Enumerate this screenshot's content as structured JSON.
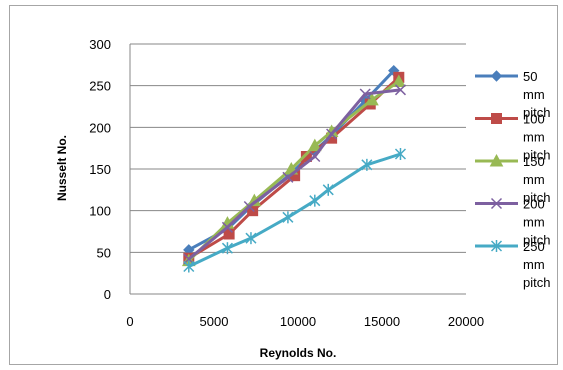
{
  "chart_data": {
    "type": "line",
    "title": "",
    "xlabel": "Reynolds No.",
    "ylabel": "Nusselt No.",
    "xlim": [
      0,
      20000
    ],
    "ylim": [
      0,
      300
    ],
    "x_ticks": [
      0,
      5000,
      10000,
      15000,
      20000
    ],
    "y_ticks": [
      0,
      50,
      100,
      150,
      200,
      250,
      300
    ],
    "x_tick_labels": [
      "0",
      "5000",
      "10000",
      "15000",
      "20000"
    ],
    "y_tick_labels": [
      "0",
      "50",
      "100",
      "150",
      "200",
      "250",
      "300"
    ],
    "grid": "horizontal",
    "legend": "right",
    "series": [
      {
        "name": "50 mm pitch",
        "name_lines": [
          "50",
          "mm",
          "pitch"
        ],
        "color": "#4a7ebb",
        "marker": "diamond",
        "points": [
          [
            3500,
            53
          ],
          [
            5800,
            78
          ],
          [
            7200,
            105
          ],
          [
            9500,
            143
          ],
          [
            11000,
            172
          ],
          [
            12000,
            190
          ],
          [
            14000,
            232
          ],
          [
            15700,
            268
          ]
        ]
      },
      {
        "name": "100 mm pitch",
        "name_lines": [
          "100",
          "mm",
          "pitch"
        ],
        "color": "#be4b48",
        "marker": "square",
        "points": [
          [
            3500,
            43
          ],
          [
            5900,
            72
          ],
          [
            7300,
            100
          ],
          [
            9800,
            142
          ],
          [
            10500,
            165
          ],
          [
            12000,
            187
          ],
          [
            14300,
            228
          ],
          [
            16000,
            260
          ]
        ]
      },
      {
        "name": "150 mm pitch",
        "name_lines": [
          "150",
          "mm",
          "pitch"
        ],
        "color": "#98b954",
        "marker": "triangle",
        "points": [
          [
            3500,
            40
          ],
          [
            5800,
            85
          ],
          [
            7400,
            112
          ],
          [
            9600,
            150
          ],
          [
            11000,
            178
          ],
          [
            12000,
            195
          ],
          [
            14400,
            233
          ],
          [
            16000,
            255
          ]
        ]
      },
      {
        "name": "200 mm pitch",
        "name_lines": [
          "200",
          "mm",
          "pitch"
        ],
        "color": "#7d60a0",
        "marker": "x",
        "points": [
          [
            3500,
            42
          ],
          [
            5800,
            80
          ],
          [
            7100,
            105
          ],
          [
            9400,
            140
          ],
          [
            11000,
            165
          ],
          [
            12000,
            192
          ],
          [
            14000,
            240
          ],
          [
            16100,
            245
          ]
        ]
      },
      {
        "name": "250 mm pitch",
        "name_lines": [
          "250",
          "mm",
          "pitch"
        ],
        "color": "#46aac5",
        "marker": "asterisk",
        "points": [
          [
            3500,
            33
          ],
          [
            5800,
            55
          ],
          [
            7200,
            67
          ],
          [
            9400,
            92
          ],
          [
            11000,
            112
          ],
          [
            11800,
            125
          ],
          [
            14100,
            155
          ],
          [
            16100,
            168
          ]
        ]
      }
    ]
  }
}
